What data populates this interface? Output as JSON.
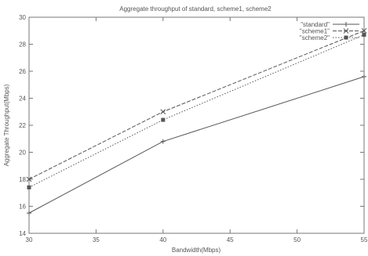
{
  "chart_data": {
    "type": "line",
    "title": "Aggregate throughput of standard, scheme1, scheme2",
    "xlabel": "Bandwidth(Mbps)",
    "ylabel": "Aggregate Throughput(Mbps)",
    "xlim": [
      30,
      55
    ],
    "ylim": [
      14,
      30
    ],
    "xticks": [
      30,
      35,
      40,
      45,
      50,
      55
    ],
    "yticks": [
      14,
      16,
      18,
      20,
      22,
      24,
      26,
      28,
      30
    ],
    "grid": false,
    "legend_position": "top-right",
    "x": [
      30,
      40,
      55
    ],
    "series": [
      {
        "name": "\"standard\"",
        "values": [
          15.5,
          20.8,
          25.6
        ],
        "marker": "plus",
        "dash": "solid",
        "color": "#555555"
      },
      {
        "name": "\"scheme1\"",
        "values": [
          18.0,
          23.0,
          29.0
        ],
        "marker": "cross",
        "dash": "dashed",
        "color": "#555555"
      },
      {
        "name": "\"scheme2\"",
        "values": [
          17.4,
          22.4,
          28.7
        ],
        "marker": "square",
        "dash": "dotted",
        "color": "#555555"
      }
    ]
  }
}
